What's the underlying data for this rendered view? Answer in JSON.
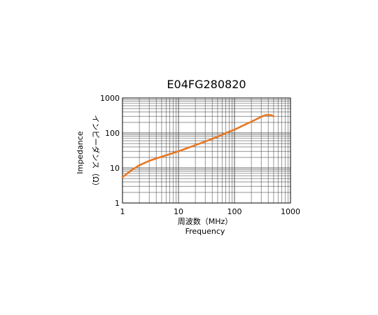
{
  "chart_data": {
    "type": "line",
    "title": "E04FG280820",
    "xlabel": "周波数（MHz）",
    "xlabel_sub": "Frequency",
    "ylabel": "インピーダンス（Ω）",
    "ylabel_sub": "Impedance",
    "x_scale": "log",
    "y_scale": "log",
    "xlim": [
      1,
      1000
    ],
    "ylim": [
      1,
      1000
    ],
    "x_ticks": [
      "1",
      "10",
      "100",
      "1000"
    ],
    "y_ticks": [
      "1",
      "10",
      "100",
      "1000"
    ],
    "grid": true,
    "series": [
      {
        "color": "#e87722",
        "x": [
          1,
          1.5,
          2,
          3,
          5,
          7,
          10,
          15,
          20,
          30,
          50,
          70,
          100,
          150,
          200,
          300,
          350,
          400,
          450,
          500
        ],
        "y": [
          5.5,
          9,
          12,
          16,
          21,
          25,
          30,
          38,
          45,
          57,
          78,
          100,
          125,
          170,
          210,
          290,
          320,
          330,
          325,
          300
        ]
      }
    ]
  }
}
